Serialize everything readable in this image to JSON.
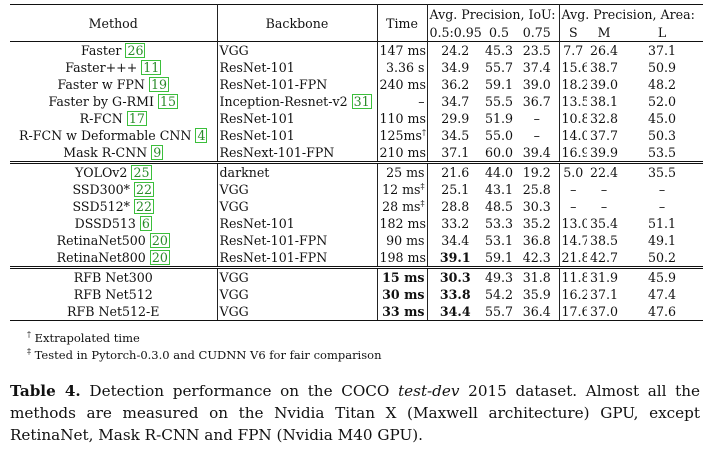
{
  "header": {
    "method": "Method",
    "backbone": "Backbone",
    "time": "Time",
    "ap_group": "Avg. Precision, IoU:",
    "area_group": "Avg. Precision, Area:",
    "ap_cols": [
      "0.5:0.95",
      "0.5",
      "0.75"
    ],
    "area_cols": [
      "S",
      "M",
      "L"
    ]
  },
  "groups": [
    {
      "rows": [
        {
          "method": "Faster",
          "ref": "26",
          "backbone": "VGG",
          "backbone_ref": "",
          "time": "147 ms",
          "time_mark": "",
          "ap": [
            "24.2",
            "45.3",
            "23.5"
          ],
          "area": [
            "7.7",
            "26.4",
            "37.1"
          ]
        },
        {
          "method": "Faster+++",
          "ref": "11",
          "backbone": "ResNet-101",
          "backbone_ref": "",
          "time": "3.36 s",
          "time_mark": "",
          "ap": [
            "34.9",
            "55.7",
            "37.4"
          ],
          "area": [
            "15.6",
            "38.7",
            "50.9"
          ]
        },
        {
          "method": "Faster w FPN",
          "ref": "19",
          "backbone": "ResNet-101-FPN",
          "backbone_ref": "",
          "time": "240 ms",
          "time_mark": "",
          "ap": [
            "36.2",
            "59.1",
            "39.0"
          ],
          "area": [
            "18.2",
            "39.0",
            "48.2"
          ]
        },
        {
          "method": "Faster by G-RMI",
          "ref": "15",
          "backbone": "Inception-Resnet-v2",
          "backbone_ref": "31",
          "time": "–",
          "time_mark": "",
          "ap": [
            "34.7",
            "55.5",
            "36.7"
          ],
          "area": [
            "13.5",
            "38.1",
            "52.0"
          ]
        },
        {
          "method": "R-FCN",
          "ref": "17",
          "backbone": "ResNet-101",
          "backbone_ref": "",
          "time": "110 ms",
          "time_mark": "",
          "ap": [
            "29.9",
            "51.9",
            "–"
          ],
          "area": [
            "10.8",
            "32.8",
            "45.0"
          ]
        },
        {
          "method": "R-FCN w Deformable CNN",
          "ref": "4",
          "backbone": "ResNet-101",
          "backbone_ref": "",
          "time": "125ms",
          "time_mark": "†",
          "ap": [
            "34.5",
            "55.0",
            "–"
          ],
          "area": [
            "14.0",
            "37.7",
            "50.3"
          ]
        },
        {
          "method": "Mask R-CNN",
          "ref": "9",
          "backbone": "ResNext-101-FPN",
          "backbone_ref": "",
          "time": "210 ms",
          "time_mark": "",
          "ap": [
            "37.1",
            "60.0",
            "39.4"
          ],
          "area": [
            "16.9",
            "39.9",
            "53.5"
          ]
        }
      ]
    },
    {
      "rows": [
        {
          "method": "YOLOv2",
          "ref": "25",
          "backbone": "darknet",
          "backbone_ref": "",
          "time": "25 ms",
          "time_mark": "",
          "ap": [
            "21.6",
            "44.0",
            "19.2"
          ],
          "area": [
            "5.0",
            "22.4",
            "35.5"
          ]
        },
        {
          "method": "SSD300*",
          "ref": "22",
          "backbone": "VGG",
          "backbone_ref": "",
          "time": "12 ms",
          "time_mark": "‡",
          "ap": [
            "25.1",
            "43.1",
            "25.8"
          ],
          "area": [
            "–",
            "–",
            "–"
          ]
        },
        {
          "method": "SSD512*",
          "ref": "22",
          "backbone": "VGG",
          "backbone_ref": "",
          "time": "28 ms",
          "time_mark": "‡",
          "ap": [
            "28.8",
            "48.5",
            "30.3"
          ],
          "area": [
            "–",
            "–",
            "–"
          ]
        },
        {
          "method": "DSSD513",
          "ref": "6",
          "backbone": "ResNet-101",
          "backbone_ref": "",
          "time": "182 ms",
          "time_mark": "",
          "ap": [
            "33.2",
            "53.3",
            "35.2"
          ],
          "area": [
            "13.0",
            "35.4",
            "51.1"
          ]
        },
        {
          "method": "RetinaNet500",
          "ref": "20",
          "backbone": "ResNet-101-FPN",
          "backbone_ref": "",
          "time": "90 ms",
          "time_mark": "",
          "ap": [
            "34.4",
            "53.1",
            "36.8"
          ],
          "area": [
            "14.7",
            "38.5",
            "49.1"
          ]
        },
        {
          "method": "RetinaNet800",
          "ref": "20",
          "backbone": "ResNet-101-FPN",
          "backbone_ref": "",
          "time": "198 ms",
          "time_mark": "",
          "ap": [
            "39.1",
            "59.1",
            "42.3"
          ],
          "area": [
            "21.8",
            "42.7",
            "50.2"
          ],
          "bold_ap0": true
        }
      ]
    },
    {
      "rows": [
        {
          "method": "RFB Net300",
          "ref": "",
          "backbone": "VGG",
          "backbone_ref": "",
          "time": "15 ms",
          "time_mark": "",
          "ap": [
            "30.3",
            "49.3",
            "31.8"
          ],
          "area": [
            "11.8",
            "31.9",
            "45.9"
          ],
          "bold_time": true,
          "bold_ap0": true
        },
        {
          "method": "RFB Net512",
          "ref": "",
          "backbone": "VGG",
          "backbone_ref": "",
          "time": "30 ms",
          "time_mark": "",
          "ap": [
            "33.8",
            "54.2",
            "35.9"
          ],
          "area": [
            "16.2",
            "37.1",
            "47.4"
          ],
          "bold_time": true,
          "bold_ap0": true
        },
        {
          "method": "RFB Net512-E",
          "ref": "",
          "backbone": "VGG",
          "backbone_ref": "",
          "time": "33 ms",
          "time_mark": "",
          "ap": [
            "34.4",
            "55.7",
            "36.4"
          ],
          "area": [
            "17.6",
            "37.0",
            "47.6"
          ],
          "bold_time": true,
          "bold_ap0": true
        }
      ]
    }
  ],
  "notes": [
    {
      "mark": "†",
      "text": "Extrapolated time"
    },
    {
      "mark": "‡",
      "text": "Tested in Pytorch-0.3.0 and CUDNN V6 for fair comparison"
    }
  ],
  "caption": {
    "label": "Table 4.",
    "text_before": "Detection performance on the COCO",
    "italic": "test-dev",
    "text_after": "2015 dataset. Almost all the methods are measured on the Nvidia Titan X (Maxwell architecture) GPU, except RetinaNet, Mask R-CNN and FPN (Nvidia M40 GPU)."
  }
}
